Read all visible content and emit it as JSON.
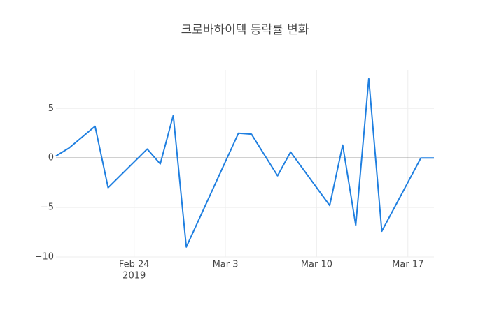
{
  "chart_data": {
    "type": "line",
    "title": "크로바하이텍 등락률 변화",
    "x": [
      "2019-02-18",
      "2019-02-19",
      "2019-02-21",
      "2019-02-22",
      "2019-02-25",
      "2019-02-26",
      "2019-02-27",
      "2019-02-28",
      "2019-03-04",
      "2019-03-05",
      "2019-03-07",
      "2019-03-08",
      "2019-03-11",
      "2019-03-12",
      "2019-03-13",
      "2019-03-14",
      "2019-03-15",
      "2019-03-18",
      "2019-03-19"
    ],
    "values": [
      0.2,
      1.0,
      3.2,
      -3.0,
      0.9,
      -0.6,
      4.3,
      -9.0,
      2.5,
      2.4,
      -1.8,
      0.6,
      -4.8,
      1.3,
      -6.8,
      8.0,
      -7.4,
      0.0,
      0.0
    ],
    "color": "#1f7fe0",
    "xlim": [
      "2019-02-18",
      "2019-03-19"
    ],
    "xticks": [
      {
        "value": "2019-02-24",
        "label": "Feb 24"
      },
      {
        "value": "2019-03-03",
        "label": "Mar 3"
      },
      {
        "value": "2019-03-10",
        "label": "Mar 10"
      },
      {
        "value": "2019-03-17",
        "label": "Mar 17"
      }
    ],
    "x_year": "2019",
    "ylim": [
      -10,
      8.9
    ],
    "yticks": [
      {
        "value": -10,
        "label": "−10"
      },
      {
        "value": -5,
        "label": "−5"
      },
      0,
      5
    ],
    "grid": true
  }
}
